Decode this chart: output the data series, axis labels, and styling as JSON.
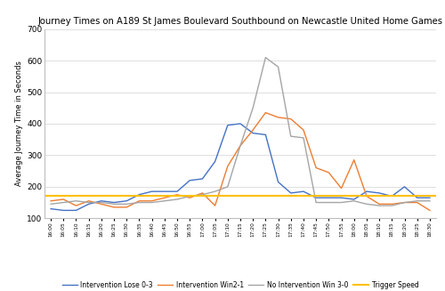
{
  "title": "Journey Times on A189 St James Boulevard Southbound on Newcastle United Home Games",
  "ylabel": "Average Journey Time in Seconds",
  "x_labels": [
    "16:00",
    "16:05",
    "16:10",
    "16:15",
    "16:20",
    "16:25",
    "16:30",
    "16:35",
    "16:40",
    "16:45",
    "16:50",
    "16:55",
    "17:00",
    "17:05",
    "17:10",
    "17:15",
    "17:20",
    "17:25",
    "17:30",
    "17:35",
    "17:40",
    "17:45",
    "17:50",
    "17:55",
    "18:00",
    "18:05",
    "18:10",
    "18:15",
    "18:20",
    "18:25",
    "18:30"
  ],
  "ylim": [
    100,
    700
  ],
  "yticks": [
    100,
    200,
    300,
    400,
    500,
    600,
    700
  ],
  "trigger_speed": 170,
  "title_fontsize": 7.2,
  "ylabel_fontsize": 6.0,
  "ytick_fontsize": 6.5,
  "xtick_fontsize": 4.2,
  "legend_fontsize": 5.5,
  "series": {
    "Intervention Lose 0-3": {
      "color": "#4472C4",
      "values": [
        130,
        125,
        125,
        145,
        155,
        150,
        155,
        175,
        185,
        185,
        185,
        220,
        225,
        280,
        395,
        400,
        370,
        365,
        215,
        180,
        185,
        165,
        165,
        165,
        160,
        185,
        180,
        170,
        200,
        165,
        165
      ]
    },
    "Intervention Win2-1": {
      "color": "#ED7D31",
      "values": [
        155,
        160,
        140,
        155,
        145,
        135,
        135,
        155,
        155,
        165,
        175,
        165,
        180,
        140,
        265,
        330,
        380,
        435,
        420,
        415,
        380,
        260,
        245,
        195,
        285,
        170,
        145,
        145,
        150,
        150,
        125
      ]
    },
    "No Intervention Win 3-0": {
      "color": "#A5A5A5",
      "values": [
        145,
        150,
        155,
        150,
        150,
        145,
        145,
        150,
        150,
        155,
        160,
        170,
        175,
        185,
        200,
        330,
        450,
        610,
        580,
        360,
        355,
        150,
        150,
        150,
        155,
        145,
        140,
        140,
        150,
        155,
        155
      ]
    }
  },
  "series_order": [
    "Intervention Lose 0-3",
    "Intervention Win2-1",
    "No Intervention Win 3-0"
  ],
  "background_color": "#FFFFFF",
  "grid_color": "#D9D9D9",
  "spine_color": "#BFBFBF"
}
